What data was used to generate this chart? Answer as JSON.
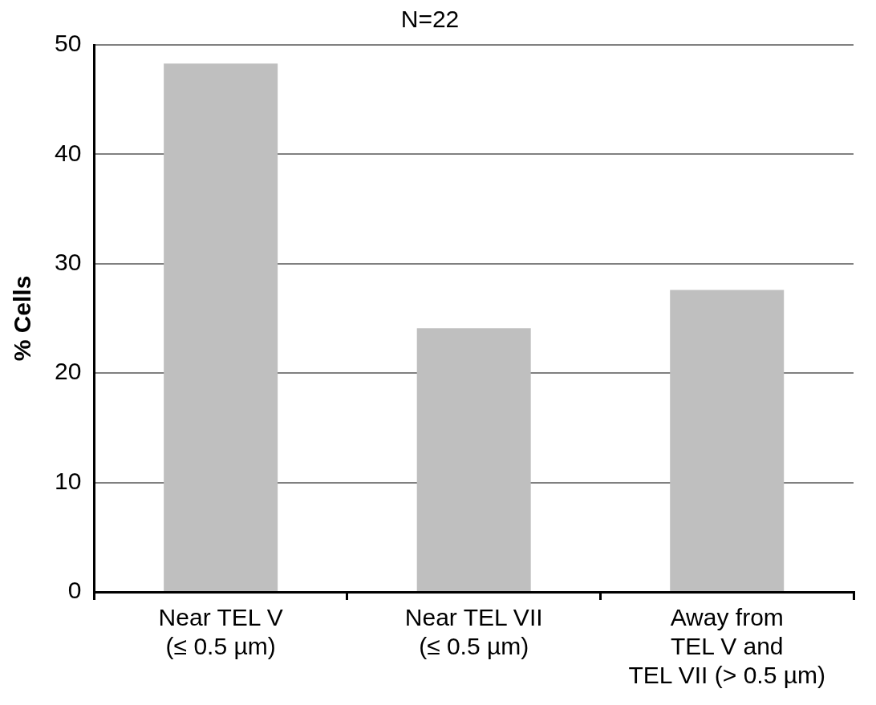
{
  "chart_data": {
    "type": "bar",
    "title": "N=22",
    "ylabel": "% Cells",
    "categories": [
      "Near TEL V\n(≤ 0.5 µm)",
      "Near TEL VII\n(≤ 0.5 µm)",
      "Away from\nTEL V and\nTEL VII (> 0.5 µm)"
    ],
    "values": [
      48.3,
      24.1,
      27.6
    ],
    "color": "#bfbfbf",
    "ylim": [
      0,
      50
    ],
    "yticks": [
      0,
      10,
      20,
      30,
      40,
      50
    ],
    "grid": "y",
    "legend": false
  }
}
